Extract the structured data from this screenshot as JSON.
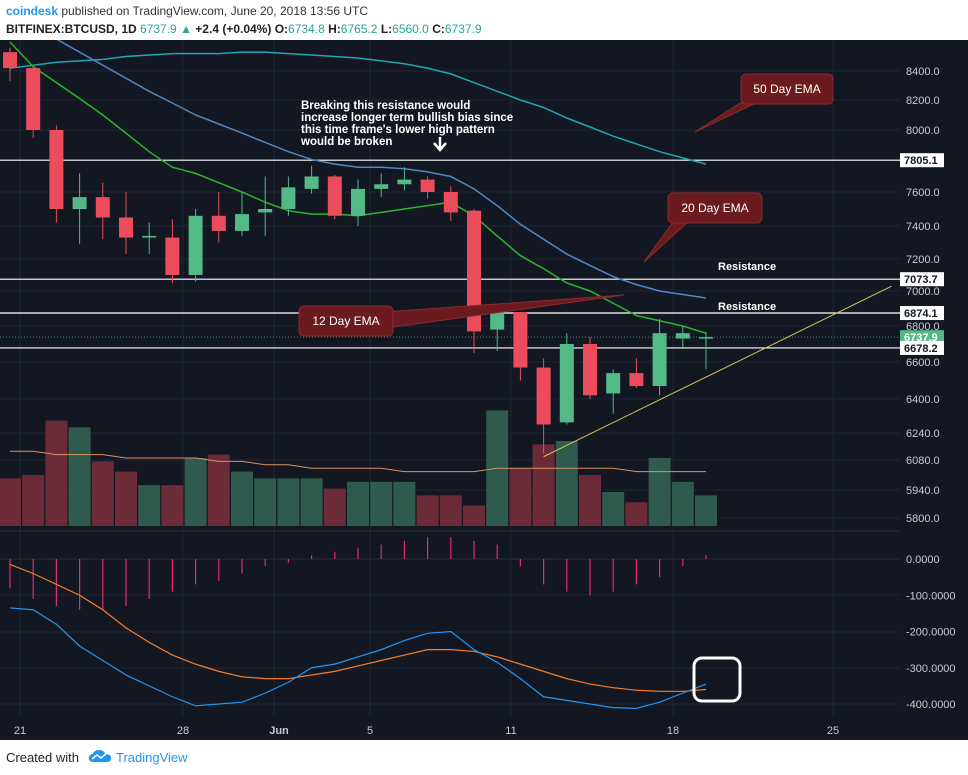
{
  "header": {
    "brand": "coindesk",
    "published": "published on TradingView.com, June 20, 2018 13:56 UTC",
    "symbol": "BITFINEX:BTCUSD, 1D",
    "last": "6737.9",
    "change_arrow": "▲",
    "change": "+2.4 (+0.04%)",
    "o_label": "O:",
    "o_value": "6734.8",
    "h_label": "H:",
    "h_value": "6765.2",
    "l_label": "L:",
    "l_value": "6560.0",
    "c_label": "C:",
    "c_value": "6737.9"
  },
  "footer": {
    "created_with": "Created with",
    "logo_icon": "tradingview-cloud-icon",
    "tradingview": "TradingView"
  },
  "colors": {
    "background": "#131722",
    "up": "#53b987",
    "down": "#eb4d5c",
    "ema12": "#2bb52b",
    "ema20": "#4f86c6",
    "ema50": "#1ea6b5",
    "volume_ma": "#d99060",
    "macd_line": "#2196f3",
    "signal_line": "#f57c28",
    "annotation_fill": "#6b1a1e",
    "trendline": "#d4c25a"
  },
  "chart_data": [
    {
      "type": "candlestick",
      "panel": "price",
      "x_tick_labels": [
        "21",
        "28",
        "Jun",
        "5",
        "11",
        "18",
        "25"
      ],
      "y_tick_labels": [
        "8400.0",
        "8200.0",
        "8000.0",
        "7600.0",
        "7400.0",
        "7200.0",
        "7000.0",
        "6800.0",
        "6600.0",
        "6400.0",
        "6240.0",
        "6080.0",
        "5940.0",
        "5800.0"
      ],
      "y_ticks": [
        8400,
        8200,
        8000,
        7600,
        7400,
        7200,
        7000,
        6800,
        6600,
        6400,
        6240,
        6080,
        5940,
        5800
      ],
      "candles": [
        {
          "o": 8530,
          "h": 8560,
          "l": 8330,
          "c": 8420
        },
        {
          "o": 8420,
          "h": 8430,
          "l": 7950,
          "c": 8000
        },
        {
          "o": 8000,
          "h": 8030,
          "l": 7420,
          "c": 7500
        },
        {
          "o": 7500,
          "h": 7720,
          "l": 7290,
          "c": 7570
        },
        {
          "o": 7570,
          "h": 7660,
          "l": 7320,
          "c": 7450
        },
        {
          "o": 7450,
          "h": 7600,
          "l": 7230,
          "c": 7330
        },
        {
          "o": 7330,
          "h": 7420,
          "l": 7230,
          "c": 7340
        },
        {
          "o": 7330,
          "h": 7440,
          "l": 7050,
          "c": 7100
        },
        {
          "o": 7100,
          "h": 7500,
          "l": 7060,
          "c": 7460
        },
        {
          "o": 7460,
          "h": 7600,
          "l": 7300,
          "c": 7370
        },
        {
          "o": 7370,
          "h": 7600,
          "l": 7340,
          "c": 7470
        },
        {
          "o": 7480,
          "h": 7700,
          "l": 7340,
          "c": 7500
        },
        {
          "o": 7500,
          "h": 7700,
          "l": 7460,
          "c": 7630
        },
        {
          "o": 7620,
          "h": 7770,
          "l": 7590,
          "c": 7700
        },
        {
          "o": 7700,
          "h": 7710,
          "l": 7440,
          "c": 7460
        },
        {
          "o": 7460,
          "h": 7680,
          "l": 7400,
          "c": 7620
        },
        {
          "o": 7620,
          "h": 7720,
          "l": 7570,
          "c": 7650
        },
        {
          "o": 7650,
          "h": 7760,
          "l": 7610,
          "c": 7680
        },
        {
          "o": 7680,
          "h": 7700,
          "l": 7560,
          "c": 7600
        },
        {
          "o": 7600,
          "h": 7640,
          "l": 7430,
          "c": 7480
        },
        {
          "o": 7490,
          "h": 7500,
          "l": 6650,
          "c": 6770
        },
        {
          "o": 6780,
          "h": 6920,
          "l": 6660,
          "c": 6880
        },
        {
          "o": 6880,
          "h": 6880,
          "l": 6500,
          "c": 6570
        },
        {
          "o": 6570,
          "h": 6620,
          "l": 6120,
          "c": 6280
        },
        {
          "o": 6290,
          "h": 6760,
          "l": 6280,
          "c": 6700
        },
        {
          "o": 6700,
          "h": 6740,
          "l": 6400,
          "c": 6420
        },
        {
          "o": 6430,
          "h": 6560,
          "l": 6330,
          "c": 6540
        },
        {
          "o": 6540,
          "h": 6620,
          "l": 6460,
          "c": 6470
        },
        {
          "o": 6470,
          "h": 6840,
          "l": 6420,
          "c": 6760
        },
        {
          "o": 6730,
          "h": 6800,
          "l": 6680,
          "c": 6760
        },
        {
          "o": 6735,
          "h": 6765,
          "l": 6560,
          "c": 6738
        }
      ],
      "ema12": [
        8600,
        8430,
        8320,
        8210,
        8100,
        7980,
        7860,
        7760,
        7720,
        7660,
        7600,
        7540,
        7490,
        7470,
        7470,
        7460,
        7480,
        7500,
        7520,
        7540,
        7460,
        7340,
        7220,
        7140,
        7050,
        7000,
        6930,
        6860,
        6830,
        6800,
        6760
      ],
      "ema20": [
        8750,
        8700,
        8620,
        8530,
        8440,
        8350,
        8260,
        8180,
        8100,
        8040,
        7980,
        7920,
        7860,
        7810,
        7780,
        7760,
        7760,
        7750,
        7730,
        7700,
        7620,
        7520,
        7410,
        7320,
        7230,
        7160,
        7090,
        7040,
        7000,
        6980,
        6960
      ],
      "ema50": [
        8420,
        8440,
        8460,
        8470,
        8480,
        8500,
        8510,
        8520,
        8520,
        8520,
        8530,
        8530,
        8520,
        8510,
        8500,
        8490,
        8470,
        8450,
        8420,
        8380,
        8320,
        8260,
        8200,
        8150,
        8080,
        8020,
        7960,
        7910,
        7860,
        7820,
        7780
      ],
      "horizontal_levels": [
        {
          "value": 7805.1,
          "label": "7805.1"
        },
        {
          "value": 7073.7,
          "label": "7073.7",
          "text": "Resistance"
        },
        {
          "value": 6874.1,
          "label": "6874.1",
          "text": "Resistance"
        },
        {
          "value": 6678.2,
          "label": "6678.2"
        }
      ],
      "last_price": {
        "value": 6737.9,
        "label": "6737.9"
      },
      "trendline": {
        "from": {
          "bar": 23,
          "price": 6100
        },
        "to": {
          "bar": 38,
          "price": 7030
        }
      },
      "annotations": [
        {
          "text": "50 Day EMA"
        },
        {
          "text": "20 Day EMA"
        },
        {
          "text": "12 Day EMA"
        },
        {
          "text_lines": [
            "Breaking this resistance would",
            "increase longer term bullish bias since",
            "this time frame's lower high pattern",
            "would be broken"
          ]
        }
      ]
    },
    {
      "type": "bar",
      "panel": "volume",
      "values": [
        14,
        15,
        31,
        29,
        19,
        16,
        12,
        12,
        20,
        21,
        16,
        14,
        14,
        14,
        11,
        13,
        13,
        13,
        9,
        9,
        6,
        34,
        17,
        24,
        25,
        15,
        10,
        7,
        20,
        13,
        9
      ],
      "ma": [
        22,
        22,
        21,
        21,
        21,
        20,
        20,
        20,
        20,
        19,
        19,
        18,
        18,
        17,
        17,
        17,
        17,
        16,
        16,
        16,
        16,
        17,
        17,
        17,
        17,
        17,
        17,
        16,
        16,
        16,
        16
      ]
    },
    {
      "type": "line",
      "panel": "macd",
      "y_tick_labels": [
        "0.0000",
        "-100.0000",
        "-200.0000",
        "-300.0000",
        "-400.0000"
      ],
      "y_ticks": [
        0,
        -100,
        -200,
        -300,
        -400
      ],
      "histogram": [
        -80,
        -110,
        -130,
        -140,
        -140,
        -130,
        -110,
        -90,
        -70,
        -60,
        -40,
        -20,
        -10,
        10,
        20,
        30,
        40,
        50,
        60,
        60,
        50,
        40,
        -20,
        -70,
        -90,
        -100,
        -90,
        -70,
        -50,
        -20,
        10
      ],
      "macd": [
        -135,
        -140,
        -180,
        -240,
        -280,
        -320,
        -350,
        -380,
        -405,
        -400,
        -395,
        -370,
        -340,
        -300,
        -290,
        -270,
        -250,
        -225,
        -205,
        -200,
        -250,
        -285,
        -330,
        -380,
        -390,
        -400,
        -410,
        -412,
        -395,
        -370,
        -345
      ],
      "signal": [
        -15,
        -40,
        -70,
        -100,
        -140,
        -190,
        -230,
        -265,
        -290,
        -310,
        -325,
        -330,
        -330,
        -320,
        -310,
        -295,
        -280,
        -265,
        -250,
        -250,
        -255,
        -270,
        -290,
        -310,
        -330,
        -345,
        -355,
        -362,
        -365,
        -365,
        -360
      ]
    }
  ]
}
